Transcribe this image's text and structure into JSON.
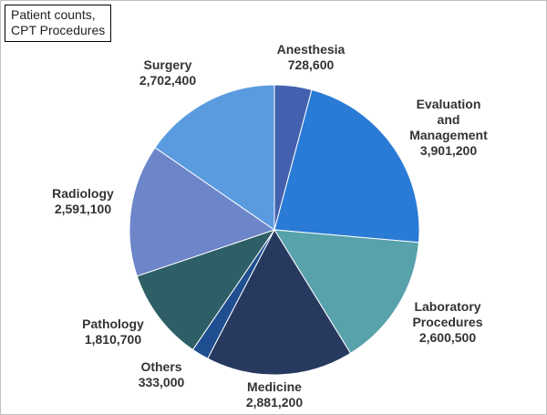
{
  "chart_data": {
    "type": "pie",
    "title_lines": [
      "Patient counts,",
      "CPT Procedures"
    ],
    "start_angle_deg": 0,
    "direction": "clockwise",
    "legend": "none",
    "slices": [
      {
        "label_lines": [
          "Anesthesia"
        ],
        "value": 728600,
        "value_label": "728,600",
        "color": "#4361ae"
      },
      {
        "label_lines": [
          "Evaluation",
          "and",
          "Management"
        ],
        "value": 3901200,
        "value_label": "3,901,200",
        "color": "#2a7bd6"
      },
      {
        "label_lines": [
          "Laboratory",
          "Procedures"
        ],
        "value": 2600500,
        "value_label": "2,600,500",
        "color": "#58a2ac"
      },
      {
        "label_lines": [
          "Medicine"
        ],
        "value": 2881200,
        "value_label": "2,881,200",
        "color": "#27395f"
      },
      {
        "label_lines": [
          "Others"
        ],
        "value": 333000,
        "value_label": "333,000",
        "color": "#1f4e91"
      },
      {
        "label_lines": [
          "Pathology"
        ],
        "value": 1810700,
        "value_label": "1,810,700",
        "color": "#2f5f66"
      },
      {
        "label_lines": [
          "Radiology"
        ],
        "value": 2591100,
        "value_label": "2,591,100",
        "color": "#6c86c9"
      },
      {
        "label_lines": [
          "Surgery"
        ],
        "value": 2702400,
        "value_label": "2,702,400",
        "color": "#5a9be0"
      }
    ]
  }
}
